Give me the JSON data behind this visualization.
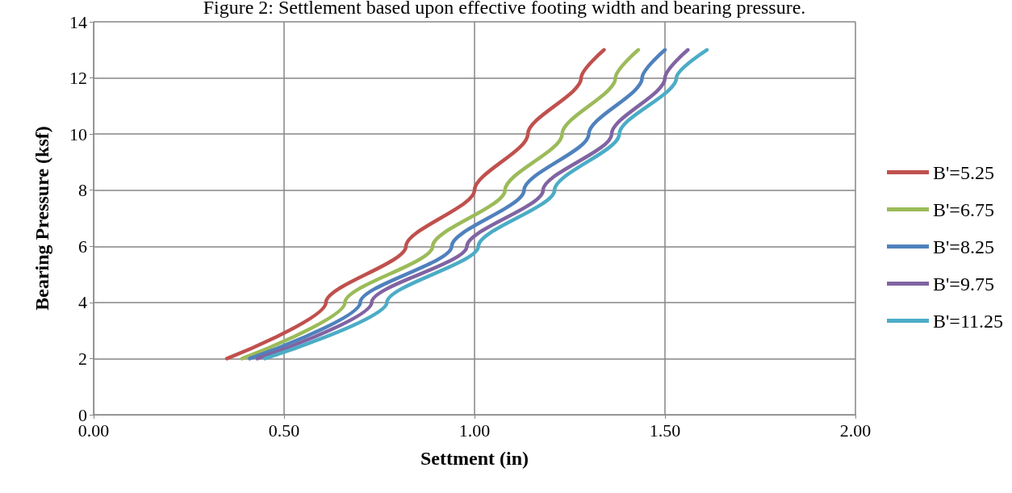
{
  "chart_data": {
    "type": "line",
    "title": "Figure 2: Settlement based upon effective footing width and bearing pressure.",
    "xlabel": "Settment (in)",
    "ylabel": "Bearing Pressure (ksf)",
    "xlim": [
      0,
      2
    ],
    "xticks": [
      {
        "value": 0,
        "label": "0.00"
      },
      {
        "value": 0.5,
        "label": "0.50"
      },
      {
        "value": 1,
        "label": "1.00"
      },
      {
        "value": 1.5,
        "label": "1.50"
      },
      {
        "value": 2,
        "label": "2.00"
      }
    ],
    "ylim": [
      0,
      14
    ],
    "yticks": [
      0,
      2,
      4,
      6,
      8,
      10,
      12,
      14
    ],
    "grid": true,
    "legend": "right",
    "marker": "none",
    "line_style": "solid",
    "series": [
      {
        "name": "B'=5.25",
        "color": "#c0504d",
        "x": [
          0.35,
          0.61,
          0.82,
          1.0,
          1.14,
          1.28,
          1.34
        ],
        "values": [
          2,
          4,
          6,
          8,
          10,
          12,
          13
        ]
      },
      {
        "name": "B'=6.75",
        "color": "#9bbb59",
        "x": [
          0.39,
          0.66,
          0.89,
          1.08,
          1.23,
          1.37,
          1.43
        ],
        "values": [
          2,
          4,
          6,
          8,
          10,
          12,
          13
        ]
      },
      {
        "name": "B'=8.25",
        "color": "#4f81bd",
        "x": [
          0.41,
          0.7,
          0.94,
          1.13,
          1.3,
          1.44,
          1.5
        ],
        "values": [
          2,
          4,
          6,
          8,
          10,
          12,
          13
        ]
      },
      {
        "name": "B'=9.75",
        "color": "#8064a2",
        "x": [
          0.43,
          0.73,
          0.98,
          1.18,
          1.36,
          1.5,
          1.56
        ],
        "values": [
          2,
          4,
          6,
          8,
          10,
          12,
          13
        ]
      },
      {
        "name": "B'=11.25",
        "color": "#4bacc6",
        "x": [
          0.45,
          0.77,
          1.01,
          1.21,
          1.38,
          1.53,
          1.61
        ],
        "values": [
          2,
          4,
          6,
          8,
          10,
          12,
          13
        ]
      }
    ]
  }
}
